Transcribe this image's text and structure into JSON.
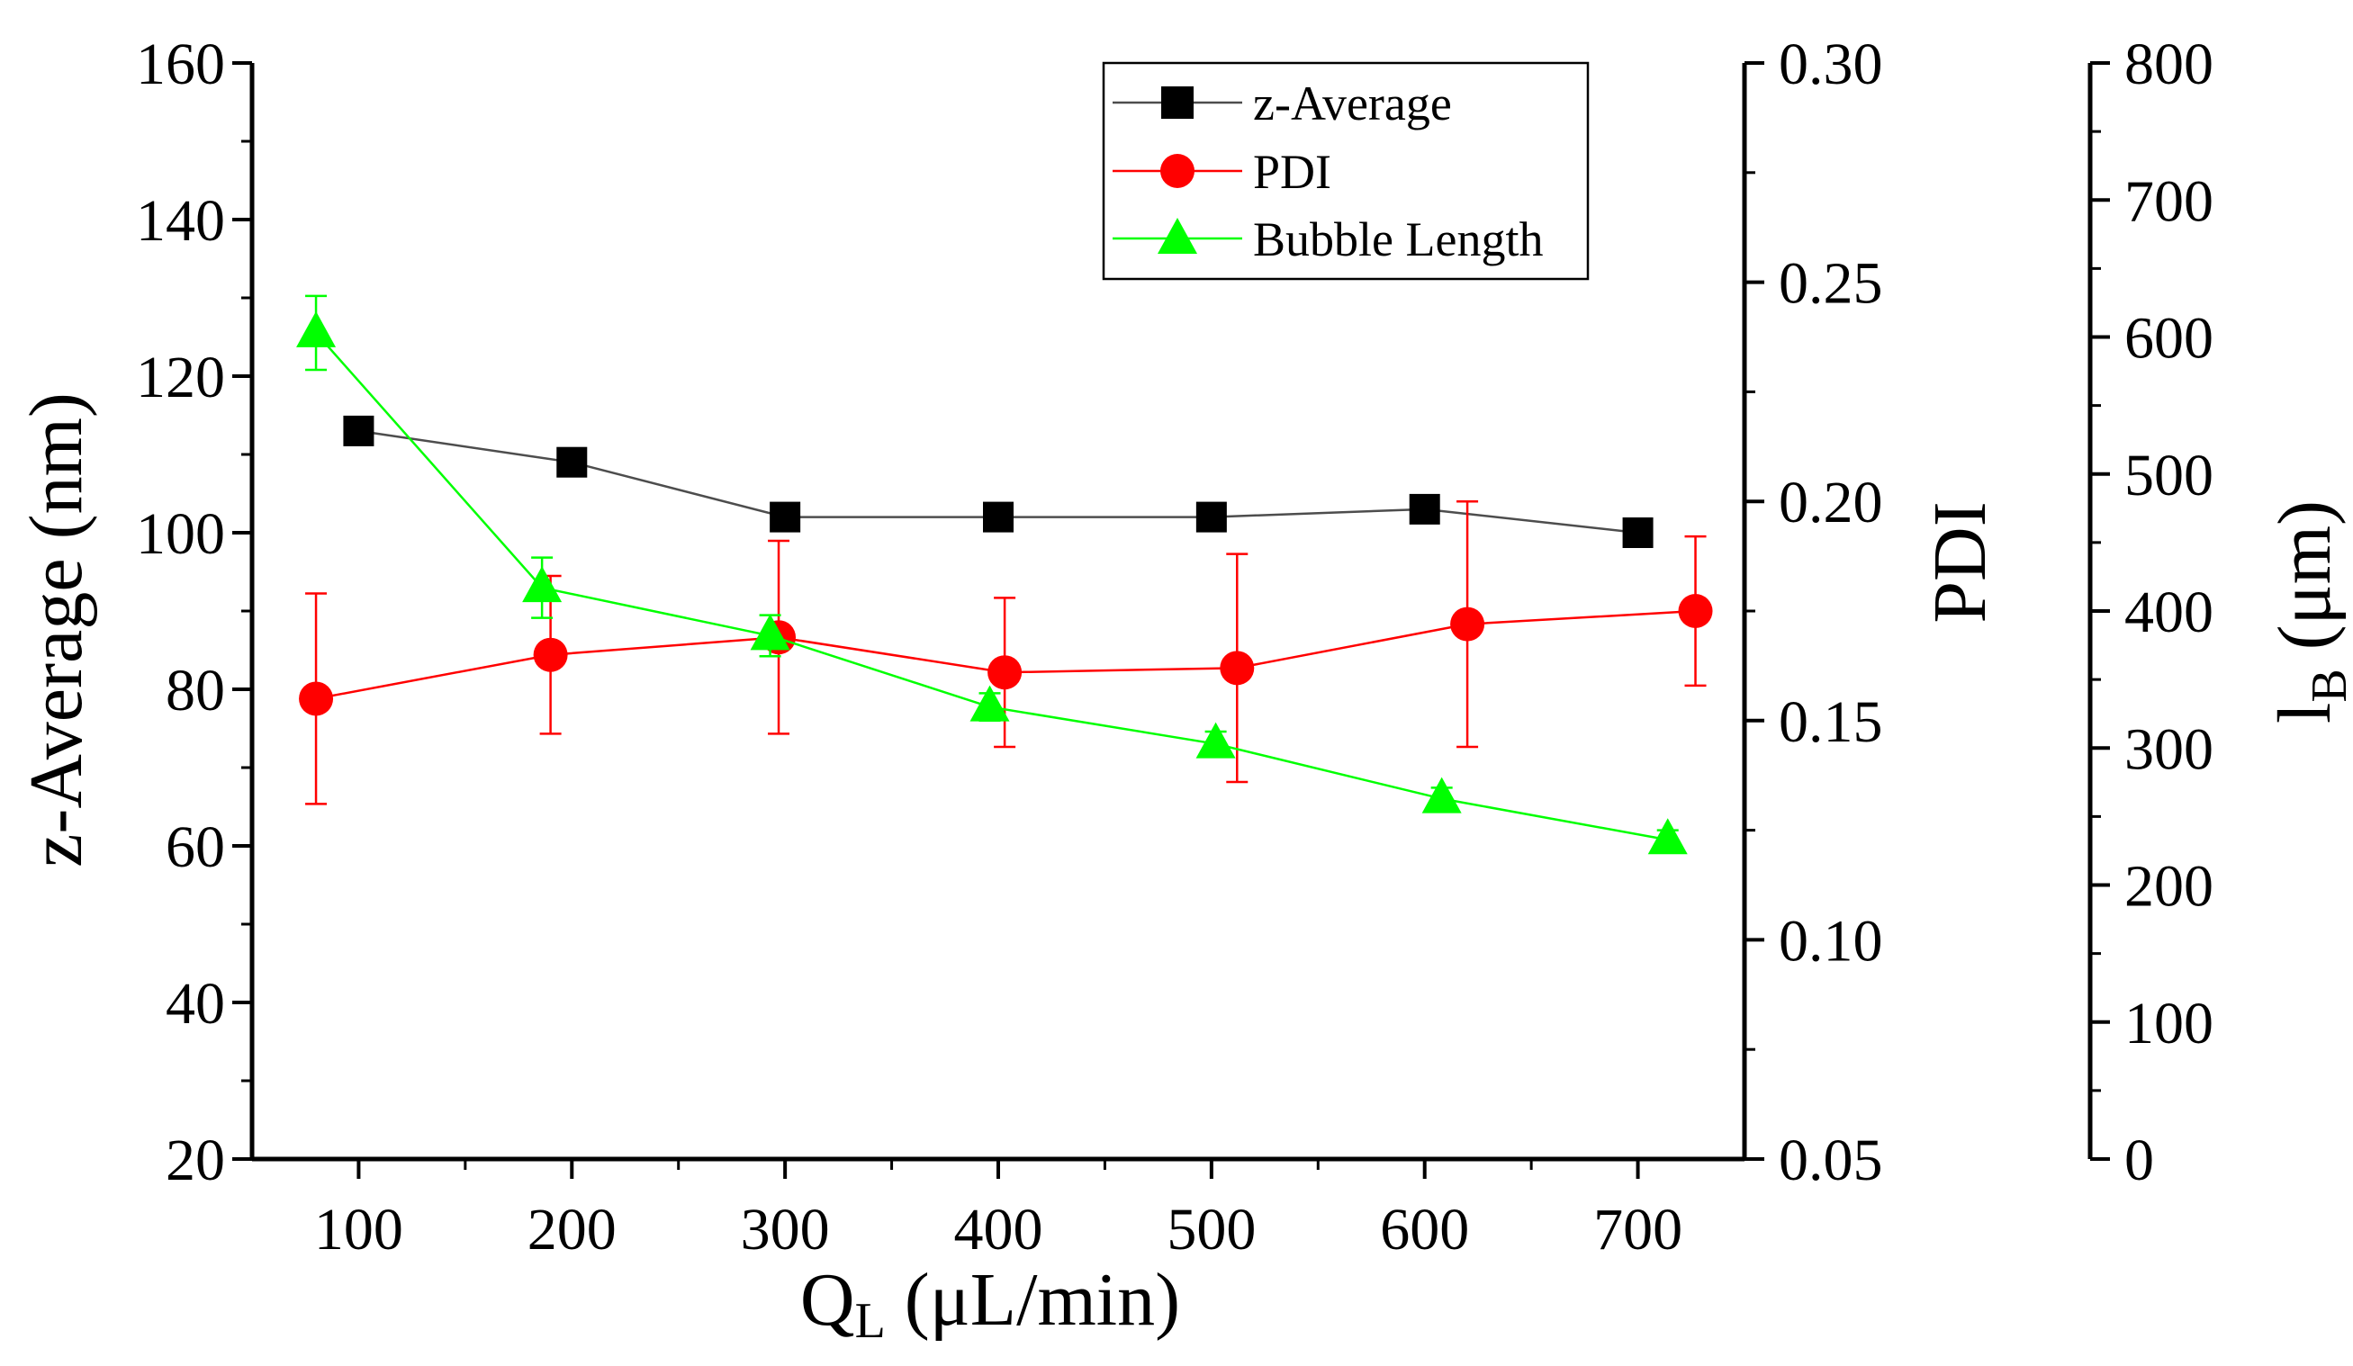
{
  "chart_data": {
    "type": "line",
    "x_axis": {
      "label_main": "Q",
      "label_sub": "L",
      "label_rest": " (μL/min)",
      "range": [
        50,
        750
      ],
      "ticks": [
        100,
        200,
        300,
        400,
        500,
        600,
        700
      ],
      "minor_step": 50
    },
    "y_axes": [
      {
        "id": "left",
        "label": "z-Average (nm)",
        "range": [
          20,
          160
        ],
        "ticks": [
          20,
          40,
          60,
          80,
          100,
          120,
          140,
          160
        ],
        "tick_labels": [
          "20",
          "40",
          "60",
          "80",
          "100",
          "120",
          "140",
          "160"
        ],
        "minor_step": 10
      },
      {
        "id": "right1",
        "label": "PDI",
        "range": [
          0.05,
          0.3
        ],
        "ticks": [
          0.05,
          0.1,
          0.15,
          0.2,
          0.25,
          0.3
        ],
        "tick_labels": [
          "0.05",
          "0.10",
          "0.15",
          "0.20",
          "0.25",
          "0.30"
        ],
        "minor_step": 0.025
      },
      {
        "id": "right2",
        "label_main": "l",
        "label_sub": "B",
        "label_rest": " (μm)",
        "range": [
          0,
          800
        ],
        "ticks": [
          0,
          100,
          200,
          300,
          400,
          500,
          600,
          700,
          800
        ],
        "tick_labels": [
          "0",
          "100",
          "200",
          "300",
          "400",
          "500",
          "600",
          "700",
          "800"
        ],
        "minor_step": 50
      }
    ],
    "series": [
      {
        "name": "z-Average",
        "axis": "left",
        "color": "#000000",
        "line_color": "#4d4d4d",
        "marker": "square",
        "x": [
          100,
          200,
          300,
          400,
          500,
          600,
          700
        ],
        "y": [
          113,
          109,
          102,
          102,
          102,
          103,
          100
        ],
        "err": [
          1.2,
          0.8,
          0.6,
          0.6,
          0.6,
          0.7,
          0.6
        ]
      },
      {
        "name": "PDI",
        "axis": "right1",
        "color": "#ff0000",
        "line_color": "#ff0000",
        "marker": "circle",
        "x": [
          80,
          190,
          297,
          403,
          512,
          620,
          727
        ],
        "y": [
          0.155,
          0.165,
          0.169,
          0.161,
          0.162,
          0.172,
          0.175
        ],
        "err": [
          0.024,
          0.018,
          0.022,
          0.017,
          0.026,
          0.028,
          0.017
        ]
      },
      {
        "name": "Bubble Length",
        "axis": "right2",
        "color": "#00ff00",
        "line_color": "#00ff00",
        "marker": "triangle",
        "x": [
          80,
          186,
          293,
          396,
          502,
          608,
          714
        ],
        "y": [
          603,
          417,
          382,
          330,
          303,
          263,
          233
        ],
        "err": [
          27,
          22,
          15,
          10,
          9,
          8,
          7
        ]
      }
    ],
    "legend": {
      "position": "top-right",
      "entries": [
        "z-Average",
        "PDI",
        "Bubble Length"
      ]
    }
  }
}
